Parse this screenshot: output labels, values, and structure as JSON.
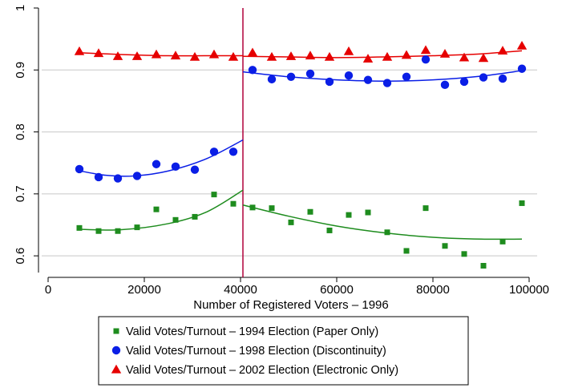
{
  "chart_data": {
    "type": "scatter",
    "title": "",
    "xlabel": "Number of Registered Voters – 1996",
    "ylabel": "",
    "xlim": [
      0,
      100000
    ],
    "ylim": [
      0.6,
      1.0
    ],
    "x_ticks": [
      0,
      20000,
      40000,
      60000,
      80000,
      100000
    ],
    "x_tick_labels": [
      "0",
      "20000",
      "40000",
      "60000",
      "80000",
      "100000"
    ],
    "y_ticks": [
      0.6,
      0.7,
      0.8,
      0.9,
      1.0
    ],
    "y_tick_labels": [
      "0.6",
      "0.7",
      "0.8",
      "0.9",
      "1"
    ],
    "grid": "horizontal",
    "cutoff_x": 40500,
    "cutoff_color": "#b0003a",
    "legend_position": "bottom",
    "series": [
      {
        "name": "Valid Votes/Turnout – 1994 Election (Paper Only)",
        "color": "#1e8c1e",
        "marker": "square",
        "points": [
          [
            6500,
            0.645
          ],
          [
            10500,
            0.64
          ],
          [
            14500,
            0.64
          ],
          [
            18500,
            0.646
          ],
          [
            22500,
            0.675
          ],
          [
            26500,
            0.658
          ],
          [
            30500,
            0.663
          ],
          [
            34500,
            0.699
          ],
          [
            38500,
            0.684
          ],
          [
            42500,
            0.678
          ],
          [
            46500,
            0.677
          ],
          [
            50500,
            0.654
          ],
          [
            54500,
            0.671
          ],
          [
            58500,
            0.641
          ],
          [
            62500,
            0.666
          ],
          [
            66500,
            0.67
          ],
          [
            70500,
            0.638
          ],
          [
            74500,
            0.608
          ],
          [
            78500,
            0.677
          ],
          [
            82500,
            0.616
          ],
          [
            86500,
            0.603
          ],
          [
            90500,
            0.584
          ],
          [
            94500,
            0.623
          ],
          [
            98500,
            0.685
          ]
        ],
        "fit_left": [
          [
            6000,
            0.643
          ],
          [
            15000,
            0.642
          ],
          [
            25000,
            0.652
          ],
          [
            33000,
            0.671
          ],
          [
            40500,
            0.706
          ]
        ],
        "fit_right": [
          [
            40500,
            0.682
          ],
          [
            50000,
            0.664
          ],
          [
            60000,
            0.648
          ],
          [
            70000,
            0.637
          ],
          [
            80000,
            0.63
          ],
          [
            90000,
            0.627
          ],
          [
            98500,
            0.627
          ]
        ]
      },
      {
        "name": "Valid Votes/Turnout – 1998 Election (Discontinuity)",
        "color": "#0a1ee6",
        "marker": "circle",
        "points": [
          [
            6500,
            0.74
          ],
          [
            10500,
            0.727
          ],
          [
            14500,
            0.725
          ],
          [
            18500,
            0.729
          ],
          [
            22500,
            0.748
          ],
          [
            26500,
            0.744
          ],
          [
            30500,
            0.739
          ],
          [
            34500,
            0.768
          ],
          [
            38500,
            0.768
          ],
          [
            42500,
            0.9
          ],
          [
            46500,
            0.885
          ],
          [
            50500,
            0.889
          ],
          [
            54500,
            0.894
          ],
          [
            58500,
            0.881
          ],
          [
            62500,
            0.891
          ],
          [
            66500,
            0.884
          ],
          [
            70500,
            0.879
          ],
          [
            74500,
            0.889
          ],
          [
            78500,
            0.917
          ],
          [
            82500,
            0.876
          ],
          [
            86500,
            0.881
          ],
          [
            90500,
            0.888
          ],
          [
            94500,
            0.886
          ],
          [
            98500,
            0.902
          ]
        ],
        "fit_left": [
          [
            6000,
            0.738
          ],
          [
            12000,
            0.73
          ],
          [
            18000,
            0.729
          ],
          [
            25000,
            0.737
          ],
          [
            33000,
            0.757
          ],
          [
            40500,
            0.787
          ]
        ],
        "fit_right": [
          [
            40500,
            0.897
          ],
          [
            50000,
            0.889
          ],
          [
            60000,
            0.884
          ],
          [
            70000,
            0.882
          ],
          [
            80000,
            0.884
          ],
          [
            90000,
            0.89
          ],
          [
            98500,
            0.899
          ]
        ]
      },
      {
        "name": "Valid Votes/Turnout – 2002 Election (Electronic Only)",
        "color": "#e60000",
        "marker": "triangle",
        "points": [
          [
            6500,
            0.93
          ],
          [
            10500,
            0.927
          ],
          [
            14500,
            0.922
          ],
          [
            18500,
            0.922
          ],
          [
            22500,
            0.925
          ],
          [
            26500,
            0.923
          ],
          [
            30500,
            0.921
          ],
          [
            34500,
            0.925
          ],
          [
            38500,
            0.921
          ],
          [
            42500,
            0.928
          ],
          [
            46500,
            0.921
          ],
          [
            50500,
            0.922
          ],
          [
            54500,
            0.923
          ],
          [
            58500,
            0.921
          ],
          [
            62500,
            0.93
          ],
          [
            66500,
            0.918
          ],
          [
            70500,
            0.921
          ],
          [
            74500,
            0.924
          ],
          [
            78500,
            0.932
          ],
          [
            82500,
            0.926
          ],
          [
            86500,
            0.92
          ],
          [
            90500,
            0.919
          ],
          [
            94500,
            0.931
          ],
          [
            98500,
            0.939
          ]
        ],
        "fit_left": [
          [
            6000,
            0.928
          ],
          [
            15000,
            0.925
          ],
          [
            25000,
            0.923
          ],
          [
            33000,
            0.923
          ],
          [
            40500,
            0.923
          ]
        ],
        "fit_right": [
          [
            40500,
            0.922
          ],
          [
            50000,
            0.921
          ],
          [
            60000,
            0.92
          ],
          [
            70000,
            0.921
          ],
          [
            80000,
            0.923
          ],
          [
            90000,
            0.926
          ],
          [
            98500,
            0.931
          ]
        ]
      }
    ]
  }
}
